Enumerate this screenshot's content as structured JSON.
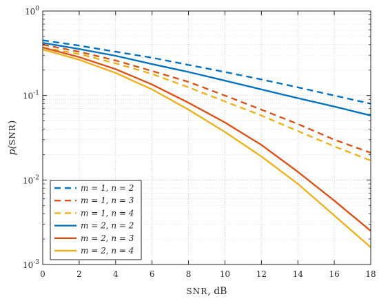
{
  "chart_data": {
    "type": "line",
    "xlabel_prefix": "SNR",
    "xlabel_suffix": ", dB",
    "ylabel_prefix": "p(",
    "ylabel_inner": "SNR",
    "ylabel_suffix": ")",
    "x_ticks": [
      0,
      2,
      4,
      6,
      8,
      10,
      12,
      14,
      16,
      18
    ],
    "x_tick_labels": [
      "0",
      "2",
      "4",
      "6",
      "8",
      "10",
      "12",
      "14",
      "16",
      "18"
    ],
    "xlim": [
      0,
      18
    ],
    "y_scale": "log",
    "ylim": [
      0.001,
      1
    ],
    "y_ticks": [
      {
        "value": 1,
        "base": "10",
        "exp": "0"
      },
      {
        "value": 0.1,
        "base": "10",
        "exp": "-1"
      },
      {
        "value": 0.01,
        "base": "10",
        "exp": "-2"
      },
      {
        "value": 0.001,
        "base": "10",
        "exp": "-3"
      }
    ],
    "grid": true,
    "legend_position": "lower-left",
    "x": [
      0,
      2,
      4,
      6,
      8,
      10,
      12,
      14,
      16,
      18
    ],
    "series": [
      {
        "name": "m = 1, n = 2",
        "color": "#0072BD",
        "dash": true,
        "values": [
          0.45,
          0.39,
          0.33,
          0.28,
          0.23,
          0.19,
          0.155,
          0.125,
          0.1,
          0.08
        ]
      },
      {
        "name": "m = 1, n = 3",
        "color": "#D95319",
        "dash": true,
        "values": [
          0.4,
          0.33,
          0.26,
          0.195,
          0.145,
          0.1,
          0.068,
          0.046,
          0.03,
          0.021
        ]
      },
      {
        "name": "m = 1, n = 4",
        "color": "#EDB120",
        "dash": true,
        "values": [
          0.37,
          0.31,
          0.24,
          0.18,
          0.125,
          0.085,
          0.058,
          0.038,
          0.025,
          0.017
        ]
      },
      {
        "name": "m = 2, n = 2",
        "color": "#0072BD",
        "dash": false,
        "values": [
          0.42,
          0.355,
          0.295,
          0.235,
          0.19,
          0.15,
          0.118,
          0.093,
          0.074,
          0.058
        ]
      },
      {
        "name": "m = 2, n = 3",
        "color": "#D95319",
        "dash": false,
        "values": [
          0.37,
          0.285,
          0.205,
          0.135,
          0.082,
          0.048,
          0.026,
          0.0125,
          0.0057,
          0.0025
        ]
      },
      {
        "name": "m = 2, n = 4",
        "color": "#EDB120",
        "dash": false,
        "values": [
          0.35,
          0.265,
          0.185,
          0.118,
          0.068,
          0.037,
          0.019,
          0.009,
          0.0038,
          0.0016
        ]
      }
    ]
  }
}
